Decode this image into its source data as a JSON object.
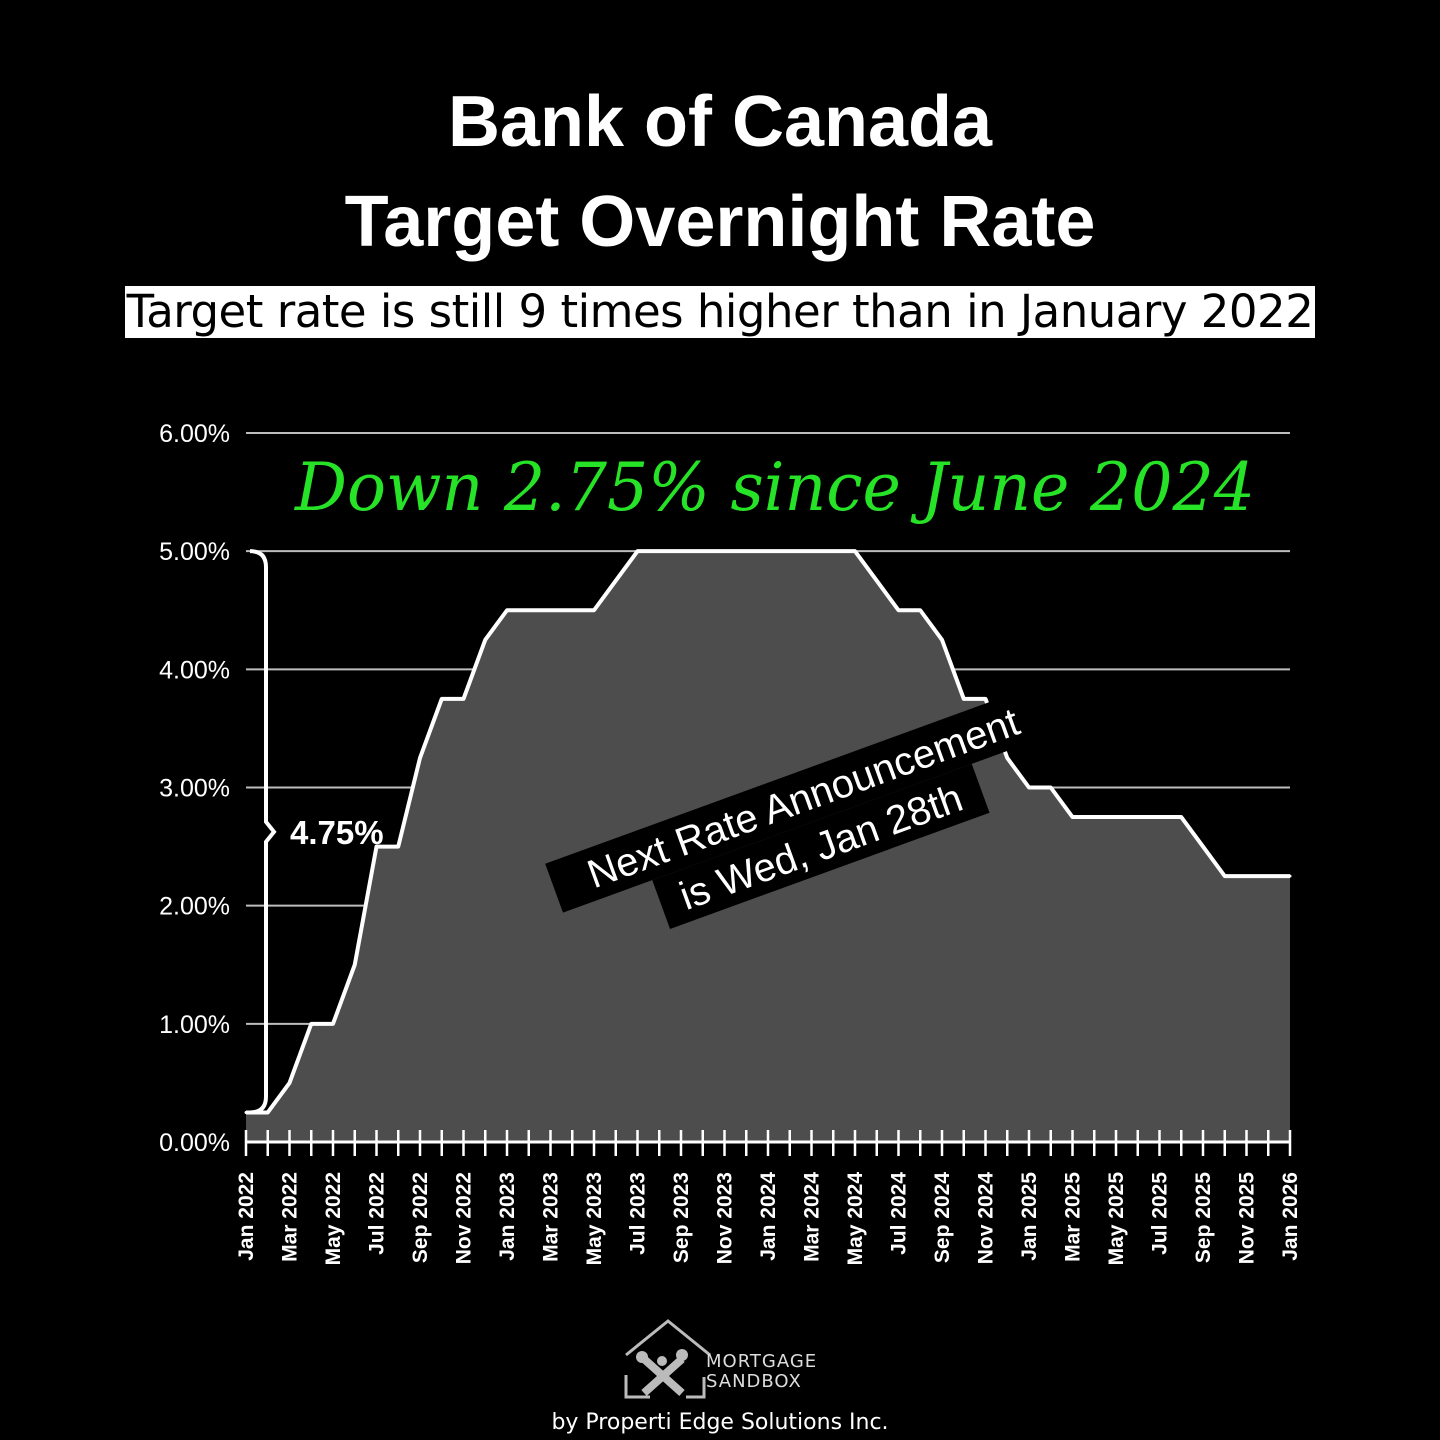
{
  "title_line1": "Bank of Canada",
  "title_line2": "Target Overnight Rate",
  "subtitle": "Target rate is still 9 times higher than in January 2022",
  "colors": {
    "background": "#000000",
    "area": "#4d4d4d",
    "line": "#ffffff",
    "note": "#27e327"
  },
  "chart_data": {
    "type": "area",
    "ylim": [
      0,
      6
    ],
    "y_ticks": [
      {
        "value": 0,
        "label": "0.00%"
      },
      {
        "value": 1,
        "label": "1.00%"
      },
      {
        "value": 2,
        "label": "2.00%"
      },
      {
        "value": 3,
        "label": "3.00%"
      },
      {
        "value": 4,
        "label": "4.00%"
      },
      {
        "value": 5,
        "label": "5.00%"
      },
      {
        "value": 6,
        "label": "6.00%"
      }
    ],
    "grid": true,
    "x_range": [
      "2022-01",
      "2026-01"
    ],
    "x_tick_labels": [
      "Jan 2022",
      "Mar 2022",
      "May 2022",
      "Jul 2022",
      "Sep 2022",
      "Nov 2022",
      "Jan 2023",
      "Mar 2023",
      "May 2023",
      "Jul 2023",
      "Sep 2023",
      "Nov 2023",
      "Jan 2024",
      "Mar 2024",
      "May 2024",
      "Jul 2024",
      "Sep 2024",
      "Nov 2024",
      "Jan 2025",
      "Mar 2025",
      "May 2025",
      "Jul 2025",
      "Sep 2025",
      "Nov 2025",
      "Jan 2026"
    ],
    "x_tick_label_dates": [
      "2022-01",
      "2022-03",
      "2022-05",
      "2022-07",
      "2022-09",
      "2022-11",
      "2023-01",
      "2023-03",
      "2023-05",
      "2023-07",
      "2023-09",
      "2023-11",
      "2024-01",
      "2024-03",
      "2024-05",
      "2024-07",
      "2024-09",
      "2024-11",
      "2025-01",
      "2025-03",
      "2025-05",
      "2025-07",
      "2025-09",
      "2025-11",
      "2026-01"
    ],
    "points": [
      {
        "x": "2022-01",
        "y": 0.25
      },
      {
        "x": "2022-02",
        "y": 0.25
      },
      {
        "x": "2022-03",
        "y": 0.5
      },
      {
        "x": "2022-04",
        "y": 1.0
      },
      {
        "x": "2022-05",
        "y": 1.0
      },
      {
        "x": "2022-06",
        "y": 1.5
      },
      {
        "x": "2022-07",
        "y": 2.5
      },
      {
        "x": "2022-08",
        "y": 2.5
      },
      {
        "x": "2022-09",
        "y": 3.25
      },
      {
        "x": "2022-10",
        "y": 3.75
      },
      {
        "x": "2022-11",
        "y": 3.75
      },
      {
        "x": "2022-12",
        "y": 4.25
      },
      {
        "x": "2023-01",
        "y": 4.5
      },
      {
        "x": "2023-02",
        "y": 4.5
      },
      {
        "x": "2023-03",
        "y": 4.5
      },
      {
        "x": "2023-04",
        "y": 4.5
      },
      {
        "x": "2023-05",
        "y": 4.5
      },
      {
        "x": "2023-06",
        "y": 4.75
      },
      {
        "x": "2023-07",
        "y": 5.0
      },
      {
        "x": "2023-08",
        "y": 5.0
      },
      {
        "x": "2023-09",
        "y": 5.0
      },
      {
        "x": "2023-10",
        "y": 5.0
      },
      {
        "x": "2023-11",
        "y": 5.0
      },
      {
        "x": "2023-12",
        "y": 5.0
      },
      {
        "x": "2024-01",
        "y": 5.0
      },
      {
        "x": "2024-02",
        "y": 5.0
      },
      {
        "x": "2024-03",
        "y": 5.0
      },
      {
        "x": "2024-04",
        "y": 5.0
      },
      {
        "x": "2024-05",
        "y": 5.0
      },
      {
        "x": "2024-06",
        "y": 4.75
      },
      {
        "x": "2024-07",
        "y": 4.5
      },
      {
        "x": "2024-08",
        "y": 4.5
      },
      {
        "x": "2024-09",
        "y": 4.25
      },
      {
        "x": "2024-10",
        "y": 3.75
      },
      {
        "x": "2024-11",
        "y": 3.75
      },
      {
        "x": "2024-12",
        "y": 3.25
      },
      {
        "x": "2025-01",
        "y": 3.0
      },
      {
        "x": "2025-02",
        "y": 3.0
      },
      {
        "x": "2025-03",
        "y": 2.75
      },
      {
        "x": "2025-04",
        "y": 2.75
      },
      {
        "x": "2025-05",
        "y": 2.75
      },
      {
        "x": "2025-06",
        "y": 2.75
      },
      {
        "x": "2025-07",
        "y": 2.75
      },
      {
        "x": "2025-08",
        "y": 2.75
      },
      {
        "x": "2025-09",
        "y": 2.5
      },
      {
        "x": "2025-10",
        "y": 2.25
      },
      {
        "x": "2025-11",
        "y": 2.25
      },
      {
        "x": "2025-12",
        "y": 2.25
      },
      {
        "x": "2026-01",
        "y": 2.25
      }
    ],
    "annotations": {
      "green_note": "Down 2.75% since June 2024",
      "change_label": "4.75%",
      "change_from": 0.25,
      "change_to": 5.0,
      "announce_line1": "Next Rate Announcement",
      "announce_line2": "is Wed, Jan 28th"
    }
  },
  "logo": {
    "icon": "house-sandbox-logo-icon",
    "line1": "MORTGAGE",
    "line2": "SANDBOX"
  },
  "byline": "by Properti Edge Solutions Inc."
}
